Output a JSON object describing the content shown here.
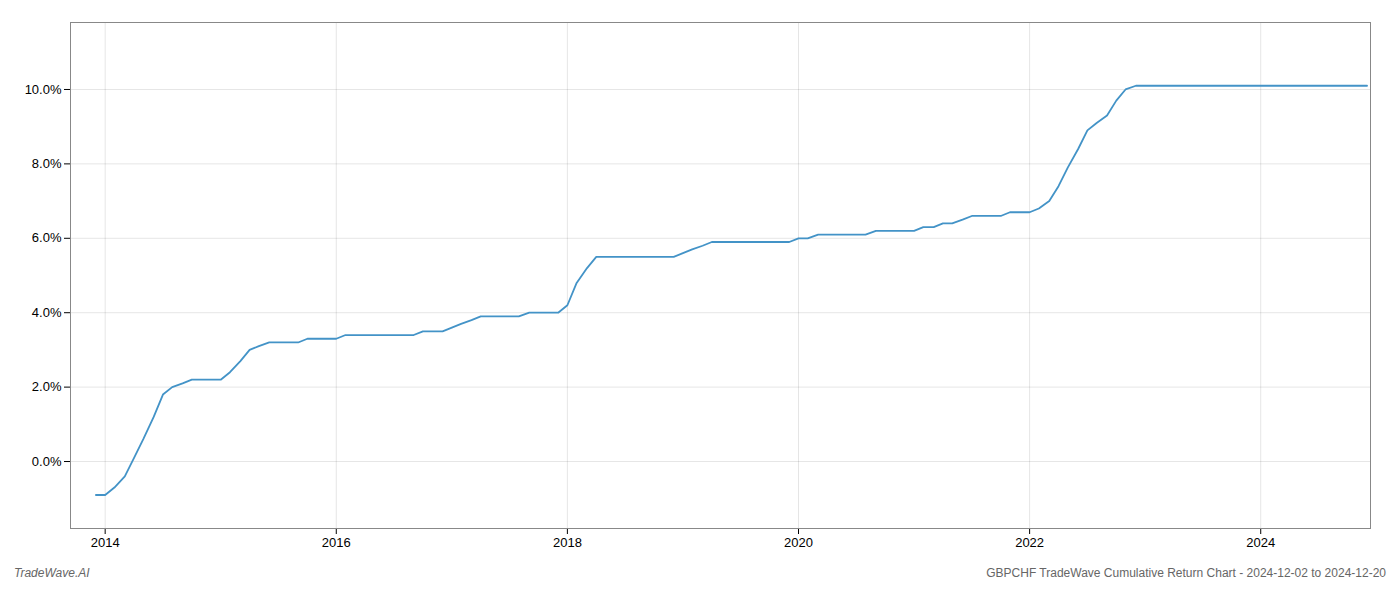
{
  "chart_data": {
    "type": "line",
    "title": "GBPCHF TradeWave Cumulative Return Chart - 2024-12-02 to 2024-12-20",
    "annotations": [
      "TradeWave.AI"
    ],
    "color": "#4393c7",
    "grid": true,
    "x": [
      2013.92,
      2014.0,
      2014.08,
      2014.17,
      2014.25,
      2014.33,
      2014.42,
      2014.5,
      2014.58,
      2014.67,
      2014.75,
      2014.83,
      2014.92,
      2015.0,
      2015.08,
      2015.17,
      2015.25,
      2015.33,
      2015.42,
      2015.5,
      2015.58,
      2015.67,
      2015.75,
      2015.83,
      2015.92,
      2016.0,
      2016.08,
      2016.17,
      2016.25,
      2016.33,
      2016.42,
      2016.5,
      2016.58,
      2016.67,
      2016.75,
      2016.83,
      2016.92,
      2017.0,
      2017.08,
      2017.17,
      2017.25,
      2017.33,
      2017.42,
      2017.5,
      2017.58,
      2017.67,
      2017.75,
      2017.83,
      2017.92,
      2018.0,
      2018.08,
      2018.17,
      2018.25,
      2018.33,
      2018.42,
      2018.5,
      2018.58,
      2018.67,
      2018.75,
      2018.83,
      2018.92,
      2019.0,
      2019.08,
      2019.17,
      2019.25,
      2019.33,
      2019.42,
      2019.5,
      2019.58,
      2019.67,
      2019.75,
      2019.83,
      2019.92,
      2020.0,
      2020.08,
      2020.17,
      2020.25,
      2020.33,
      2020.42,
      2020.5,
      2020.58,
      2020.67,
      2020.75,
      2020.83,
      2020.92,
      2021.0,
      2021.08,
      2021.17,
      2021.25,
      2021.33,
      2021.42,
      2021.5,
      2021.58,
      2021.67,
      2021.75,
      2021.83,
      2021.92,
      2022.0,
      2022.08,
      2022.17,
      2022.25,
      2022.33,
      2022.42,
      2022.5,
      2022.58,
      2022.67,
      2022.75,
      2022.83,
      2022.92,
      2023.0,
      2023.08,
      2023.17,
      2023.25,
      2023.33,
      2023.5,
      2023.67,
      2023.75,
      2023.92,
      2024.0,
      2024.17,
      2024.5,
      2024.92
    ],
    "values": [
      -0.009,
      -0.009,
      -0.007,
      -0.004,
      0.001,
      0.006,
      0.012,
      0.018,
      0.02,
      0.021,
      0.022,
      0.022,
      0.022,
      0.022,
      0.024,
      0.027,
      0.03,
      0.031,
      0.032,
      0.032,
      0.032,
      0.032,
      0.033,
      0.033,
      0.033,
      0.033,
      0.034,
      0.034,
      0.034,
      0.034,
      0.034,
      0.034,
      0.034,
      0.034,
      0.035,
      0.035,
      0.035,
      0.036,
      0.037,
      0.038,
      0.039,
      0.039,
      0.039,
      0.039,
      0.039,
      0.04,
      0.04,
      0.04,
      0.04,
      0.042,
      0.048,
      0.052,
      0.055,
      0.055,
      0.055,
      0.055,
      0.055,
      0.055,
      0.055,
      0.055,
      0.055,
      0.056,
      0.057,
      0.058,
      0.059,
      0.059,
      0.059,
      0.059,
      0.059,
      0.059,
      0.059,
      0.059,
      0.059,
      0.06,
      0.06,
      0.061,
      0.061,
      0.061,
      0.061,
      0.061,
      0.061,
      0.062,
      0.062,
      0.062,
      0.062,
      0.062,
      0.063,
      0.063,
      0.064,
      0.064,
      0.065,
      0.066,
      0.066,
      0.066,
      0.066,
      0.067,
      0.067,
      0.067,
      0.068,
      0.07,
      0.074,
      0.079,
      0.084,
      0.089,
      0.091,
      0.093,
      0.097,
      0.1,
      0.101,
      0.101,
      0.101,
      0.101,
      0.101,
      0.101,
      0.101,
      0.101,
      0.101,
      0.101,
      0.101,
      0.101,
      0.101,
      0.101
    ],
    "xlim": [
      2013.7,
      2024.95
    ],
    "xticks": [
      2014,
      2016,
      2018,
      2020,
      2022,
      2024
    ],
    "ylim": [
      -0.018,
      0.118
    ],
    "yticks": [
      {
        "value": 0.0,
        "label": "0.0%"
      },
      {
        "value": 0.02,
        "label": "2.0%"
      },
      {
        "value": 0.04,
        "label": "4.0%"
      },
      {
        "value": 0.06,
        "label": "6.0%"
      },
      {
        "value": 0.08,
        "label": "8.0%"
      },
      {
        "value": 0.1,
        "label": "10.0%"
      }
    ]
  }
}
